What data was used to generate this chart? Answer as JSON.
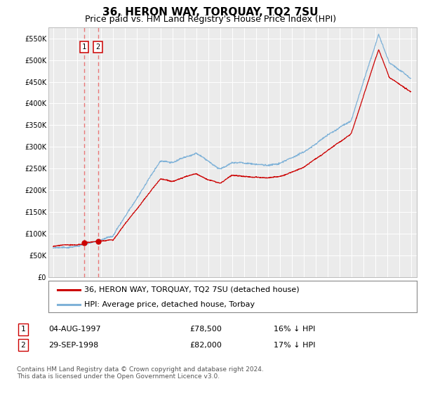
{
  "title": "36, HERON WAY, TORQUAY, TQ2 7SU",
  "subtitle": "Price paid vs. HM Land Registry's House Price Index (HPI)",
  "yticks": [
    0,
    50000,
    100000,
    150000,
    200000,
    250000,
    300000,
    350000,
    400000,
    450000,
    500000,
    550000
  ],
  "ytick_labels": [
    "£0",
    "£50K",
    "£100K",
    "£150K",
    "£200K",
    "£250K",
    "£300K",
    "£350K",
    "£400K",
    "£450K",
    "£500K",
    "£550K"
  ],
  "ylim": [
    0,
    575000
  ],
  "sale1_date_num": 1997.58,
  "sale1_price": 78500,
  "sale2_date_num": 1998.75,
  "sale2_price": 82000,
  "sale1_info": "04-AUG-1997",
  "sale1_price_str": "£78,500",
  "sale1_hpi": "16% ↓ HPI",
  "sale2_info": "29-SEP-1998",
  "sale2_price_str": "£82,000",
  "sale2_hpi": "17% ↓ HPI",
  "legend_label_red": "36, HERON WAY, TORQUAY, TQ2 7SU (detached house)",
  "legend_label_blue": "HPI: Average price, detached house, Torbay",
  "footer": "Contains HM Land Registry data © Crown copyright and database right 2024.\nThis data is licensed under the Open Government Licence v3.0.",
  "background_color": "#ffffff",
  "plot_bg_color": "#ebebeb",
  "grid_color": "#ffffff",
  "red_line_color": "#cc0000",
  "blue_line_color": "#7fb2d8",
  "vline_color": "#e87878",
  "marker_color": "#cc0000",
  "title_fontsize": 11,
  "subtitle_fontsize": 9,
  "tick_fontsize": 7,
  "legend_fontsize": 8,
  "table_fontsize": 8,
  "note_fontsize": 6.5
}
